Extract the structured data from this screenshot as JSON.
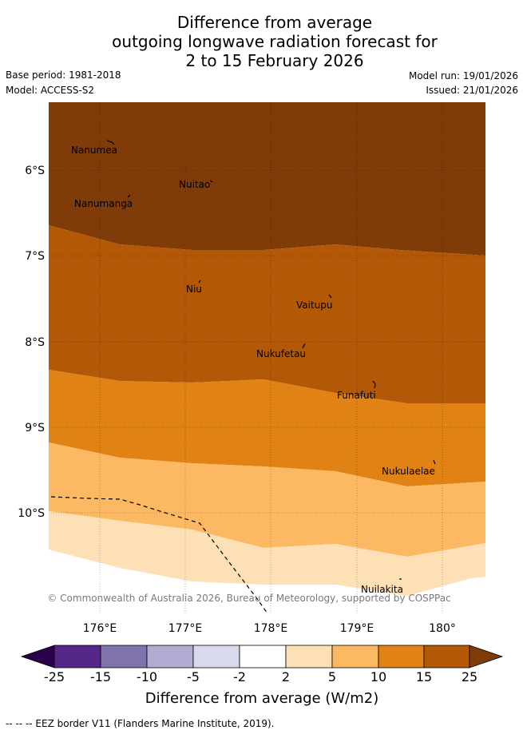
{
  "title": {
    "line1": "Difference from average",
    "line2": "outgoing longwave radiation forecast for",
    "line3": "2 to 15 February 2026"
  },
  "meta": {
    "base_period": "Base period: 1981-2018",
    "model": "Model: ACCESS-S2",
    "model_run": "Model run: 19/01/2026",
    "issued": "Issued: 21/01/2026"
  },
  "map": {
    "lat_ticks": [
      "6°S",
      "7°S",
      "8°S",
      "9°S",
      "10°S"
    ],
    "lon_ticks": [
      "176°E",
      "177°E",
      "178°E",
      "179°E",
      "180°"
    ],
    "places": [
      "Nanumea",
      "Nuitao",
      "Nanumanga",
      "Niu",
      "Vaitupu",
      "Nukufetau",
      "Funafuti",
      "Nukulaelae",
      "Nuilakita"
    ],
    "copyright": "© Commonwealth of Australia 2026, Bureau of Meteorology, supported by COSPPac",
    "band_colors": [
      "#7f3b08",
      "#b35806",
      "#e08214",
      "#fdb863",
      "#fee0b6"
    ]
  },
  "colorbar": {
    "ticks": [
      "-25",
      "-15",
      "-10",
      "-5",
      "-2",
      "2",
      "5",
      "10",
      "15",
      "25"
    ],
    "colors": [
      "#2d004b",
      "#542788",
      "#8073ac",
      "#b2abd2",
      "#d8daeb",
      "#ffffff",
      "#fee0b6",
      "#fdb863",
      "#e08214",
      "#b35806",
      "#7f3b08"
    ],
    "label": "Difference from average (W/m2)"
  },
  "footer": "--  --  -- EEZ border V11 (Flanders Marine Institute, 2019)."
}
